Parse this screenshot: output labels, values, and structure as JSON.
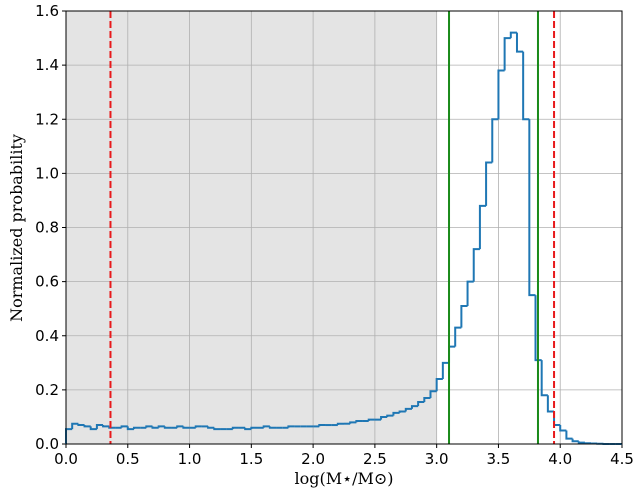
{
  "chart_data": {
    "type": "histogram_step",
    "xlabel": "log(M⋆/M⊙)",
    "ylabel": "Normalized probability",
    "bins": [
      0,
      0.05,
      0.1,
      0.15,
      0.2,
      0.25,
      0.3,
      0.35,
      0.4,
      0.45,
      0.5,
      0.55,
      0.6,
      0.65,
      0.7,
      0.75,
      0.8,
      0.85,
      0.9,
      0.95,
      1,
      1.05,
      1.1,
      1.15,
      1.2,
      1.25,
      1.3,
      1.35,
      1.4,
      1.45,
      1.5,
      1.55,
      1.6,
      1.65,
      1.7,
      1.75,
      1.8,
      1.85,
      1.9,
      1.95,
      2,
      2.05,
      2.1,
      2.15,
      2.2,
      2.25,
      2.3,
      2.35,
      2.4,
      2.45,
      2.5,
      2.55,
      2.6,
      2.65,
      2.7,
      2.75,
      2.8,
      2.85,
      2.9,
      2.95,
      3,
      3.05,
      3.1,
      3.15,
      3.2,
      3.25,
      3.3,
      3.35,
      3.4,
      3.45,
      3.5,
      3.55,
      3.6,
      3.65,
      3.7,
      3.75,
      3.8,
      3.85,
      3.9,
      3.95,
      4,
      4.05,
      4.1,
      4.15,
      4.2,
      4.25,
      4.3,
      4.35,
      4.4,
      4.45,
      4.5
    ],
    "values": [
      0.055,
      0.075,
      0.07,
      0.065,
      0.055,
      0.07,
      0.065,
      0.06,
      0.06,
      0.065,
      0.055,
      0.06,
      0.06,
      0.065,
      0.06,
      0.065,
      0.06,
      0.06,
      0.065,
      0.06,
      0.06,
      0.065,
      0.065,
      0.06,
      0.055,
      0.055,
      0.055,
      0.06,
      0.06,
      0.055,
      0.06,
      0.06,
      0.065,
      0.06,
      0.06,
      0.06,
      0.065,
      0.065,
      0.065,
      0.065,
      0.065,
      0.07,
      0.07,
      0.07,
      0.075,
      0.075,
      0.08,
      0.085,
      0.085,
      0.09,
      0.09,
      0.1,
      0.105,
      0.115,
      0.12,
      0.13,
      0.14,
      0.155,
      0.17,
      0.195,
      0.24,
      0.3,
      0.36,
      0.43,
      0.51,
      0.6,
      0.72,
      0.88,
      1.04,
      1.2,
      1.38,
      1.5,
      1.52,
      1.45,
      1.2,
      0.55,
      0.31,
      0.18,
      0.12,
      0.07,
      0.05,
      0.02,
      0.01,
      0.005,
      0.003,
      0.002,
      0.001,
      0,
      0,
      0
    ],
    "color": "#1f77b4",
    "shaded_span": [
      0,
      3.0
    ],
    "shade_color": "#e4e4e4",
    "vlines": [
      {
        "x": 0.36,
        "color": "#e8191b",
        "dashed": true
      },
      {
        "x": 3.95,
        "color": "#e8191b",
        "dashed": true
      },
      {
        "x": 3.1,
        "color": "#1a8a1a",
        "dashed": false
      },
      {
        "x": 3.82,
        "color": "#1a8a1a",
        "dashed": false
      }
    ],
    "xlim": [
      0,
      4.5
    ],
    "ylim": [
      0,
      1.6
    ],
    "xticks": [
      {
        "value": 0,
        "label": "0.0"
      },
      {
        "value": 0.5,
        "label": "0.5"
      },
      {
        "value": 1,
        "label": "1.0"
      },
      {
        "value": 1.5,
        "label": "1.5"
      },
      {
        "value": 2,
        "label": "2.0"
      },
      {
        "value": 2.5,
        "label": "2.5"
      },
      {
        "value": 3,
        "label": "3.0"
      },
      {
        "value": 3.5,
        "label": "3.5"
      },
      {
        "value": 4,
        "label": "4.0"
      },
      {
        "value": 4.5,
        "label": "4.5"
      }
    ],
    "yticks": [
      {
        "value": 0,
        "label": "0.0"
      },
      {
        "value": 0.2,
        "label": "0.2"
      },
      {
        "value": 0.4,
        "label": "0.4"
      },
      {
        "value": 0.6,
        "label": "0.6"
      },
      {
        "value": 0.8,
        "label": "0.8"
      },
      {
        "value": 1,
        "label": "1.0"
      },
      {
        "value": 1.2,
        "label": "1.2"
      },
      {
        "value": 1.4,
        "label": "1.4"
      },
      {
        "value": 1.6,
        "label": "1.6"
      }
    ],
    "grid": true
  }
}
